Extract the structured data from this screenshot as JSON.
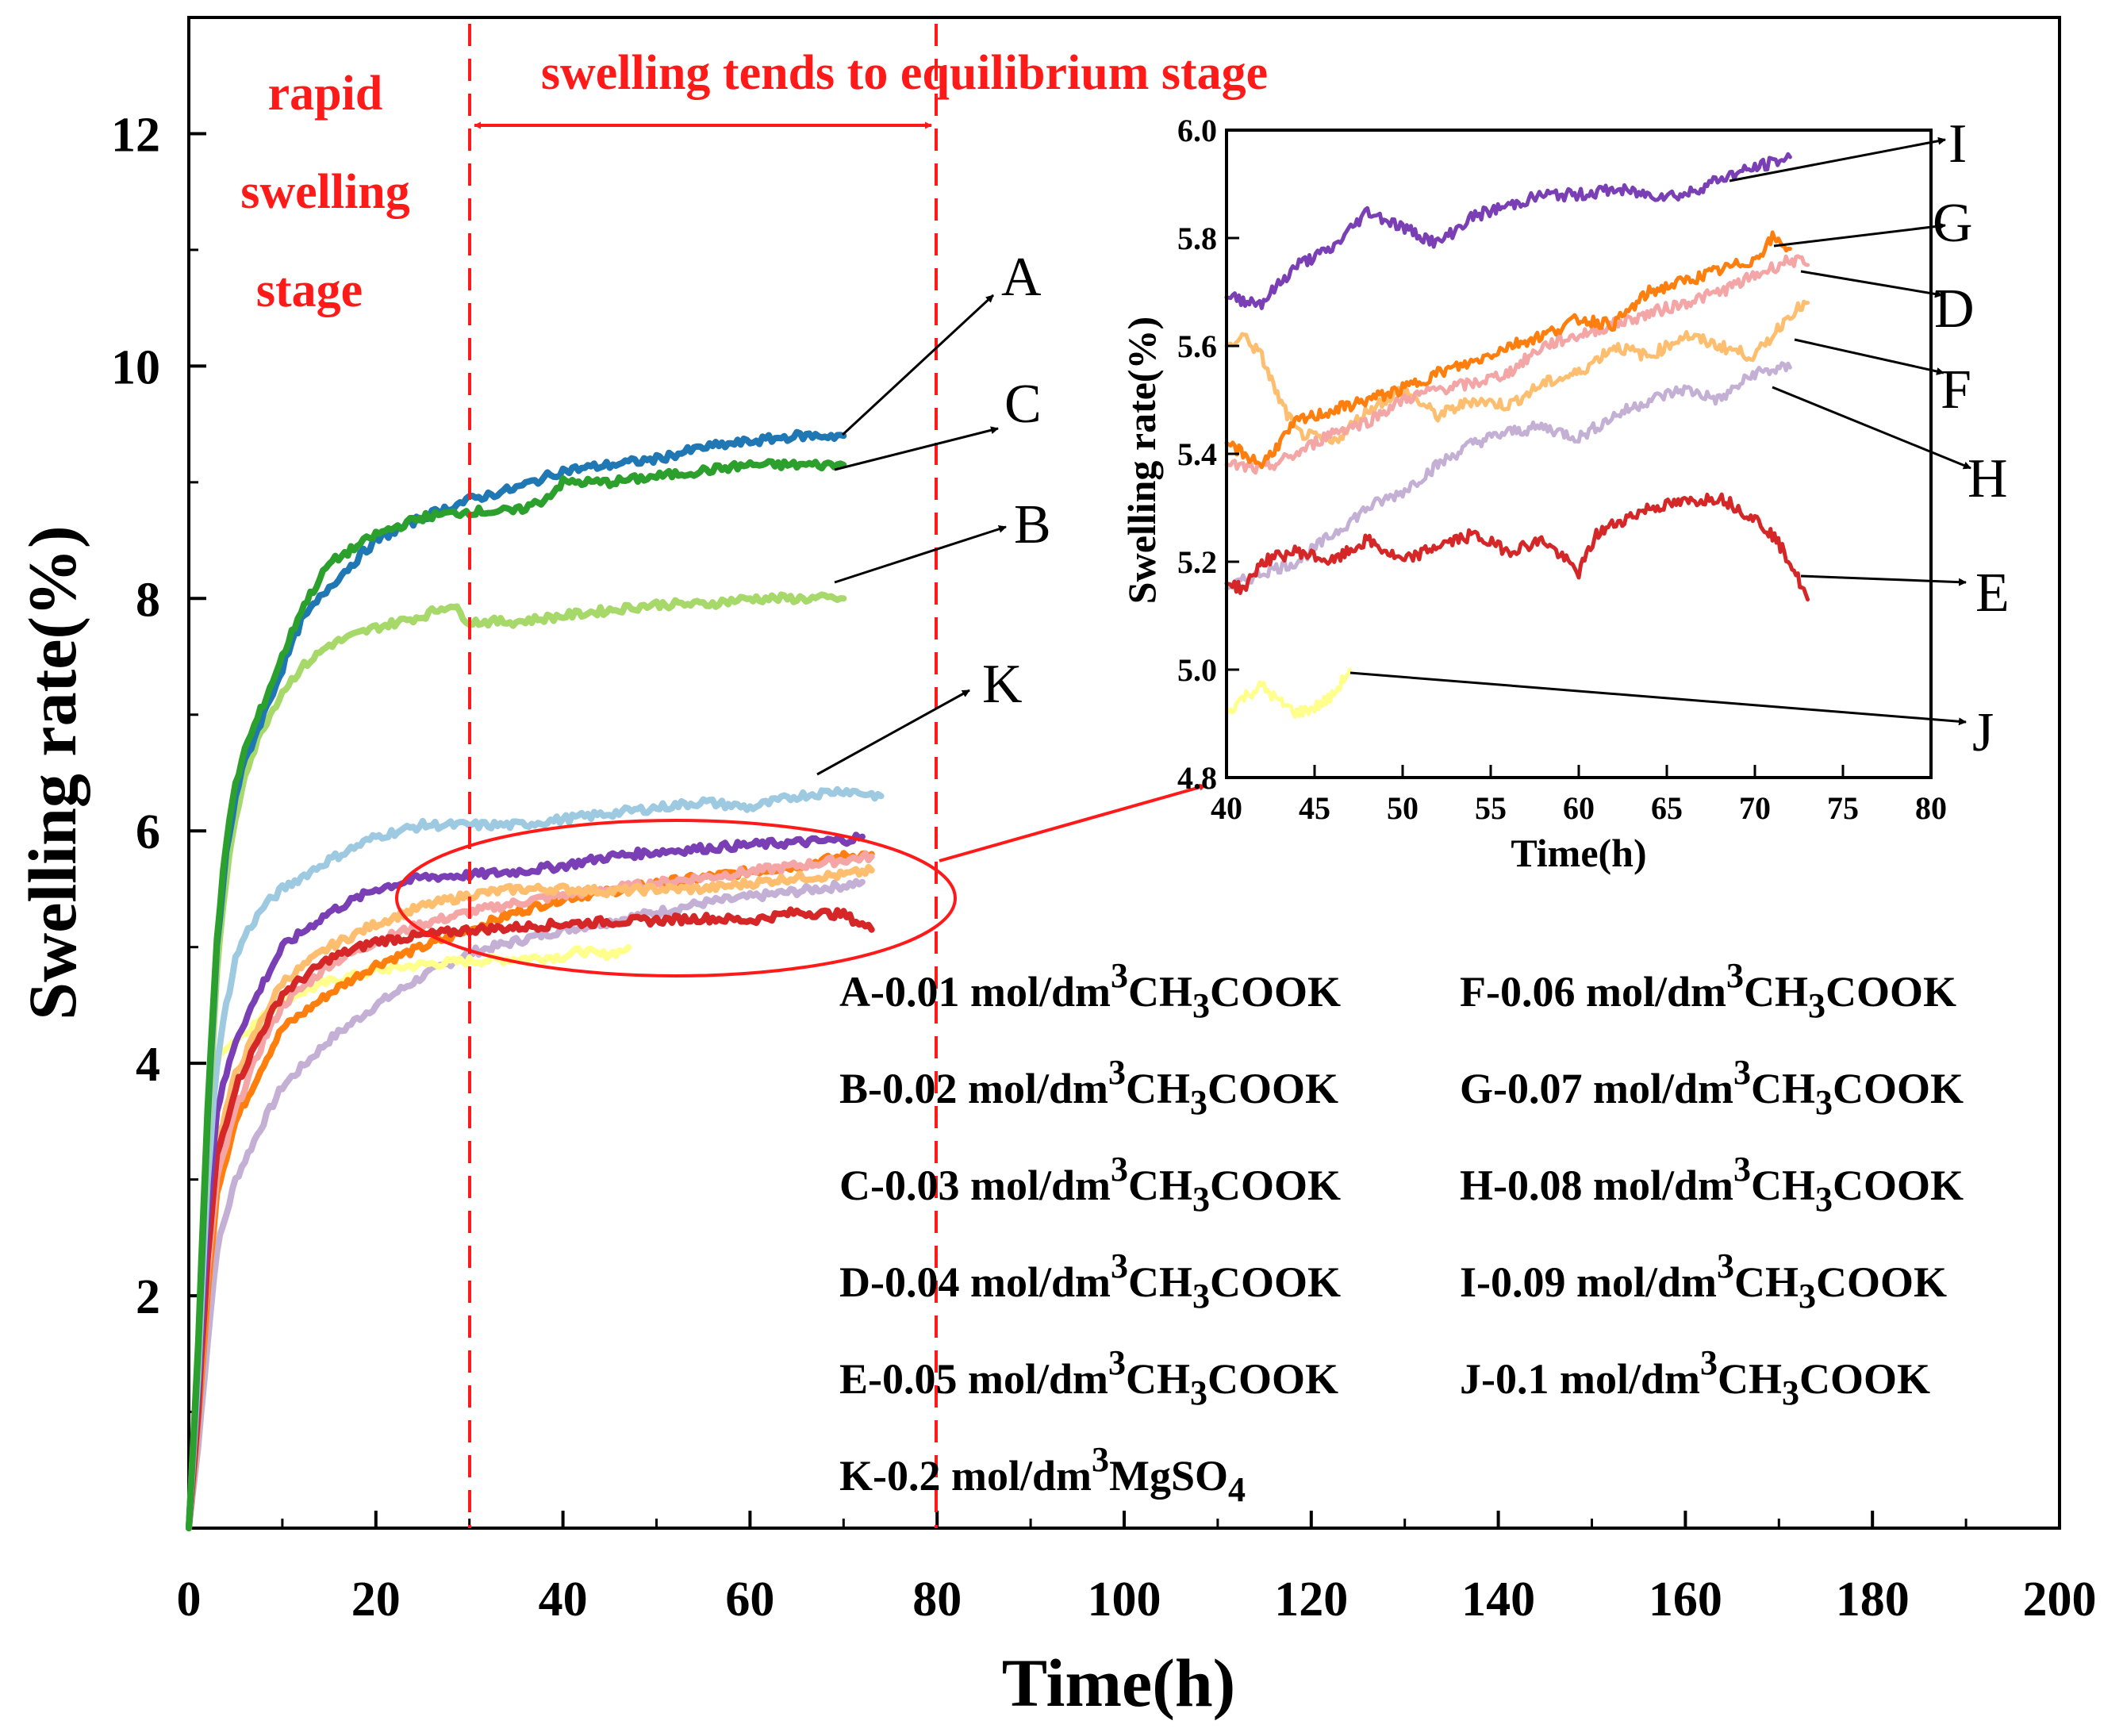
{
  "chart_data": [
    {
      "type": "line",
      "xlabel": "Time(h)",
      "ylabel": "Swelling rate(%)",
      "xlim": [
        0,
        200
      ],
      "ylim": [
        0,
        13
      ],
      "xticks": [
        "0",
        "20",
        "40",
        "60",
        "80",
        "100",
        "120",
        "140",
        "160",
        "180",
        "200"
      ],
      "yticks": [
        "2",
        "4",
        "6",
        "8",
        "10",
        "12"
      ],
      "grid": false,
      "series": [
        {
          "name": "A",
          "color": "#1f77b4",
          "x": [
            0,
            1,
            2,
            3,
            4,
            5,
            6,
            8,
            10,
            12,
            15,
            20,
            25,
            30,
            35,
            40,
            45,
            50,
            55,
            60,
            65,
            70
          ],
          "y": [
            0,
            1.5,
            3.5,
            5.0,
            5.8,
            6.3,
            6.6,
            7.0,
            7.4,
            7.8,
            8.1,
            8.5,
            8.7,
            8.85,
            8.95,
            9.1,
            9.15,
            9.2,
            9.3,
            9.35,
            9.4,
            9.4
          ]
        },
        {
          "name": "B",
          "color": "#a6d96a",
          "x": [
            0,
            1,
            2,
            3,
            4,
            5,
            6,
            8,
            10,
            12,
            15,
            20,
            25,
            28,
            30,
            35,
            40,
            45,
            50,
            55,
            60,
            65,
            70
          ],
          "y": [
            0,
            1.4,
            3.3,
            4.8,
            5.6,
            6.1,
            6.5,
            6.9,
            7.2,
            7.4,
            7.6,
            7.75,
            7.85,
            7.95,
            7.8,
            7.8,
            7.85,
            7.9,
            7.95,
            7.95,
            8.0,
            8.0,
            8.0
          ]
        },
        {
          "name": "C",
          "color": "#2ca02c",
          "x": [
            0,
            1,
            2,
            3,
            4,
            5,
            6,
            8,
            10,
            12,
            15,
            20,
            25,
            30,
            35,
            38,
            40,
            45,
            50,
            55,
            60,
            65,
            70
          ],
          "y": [
            0,
            1.6,
            3.6,
            5.1,
            5.9,
            6.4,
            6.7,
            7.1,
            7.5,
            7.9,
            8.3,
            8.55,
            8.7,
            8.75,
            8.75,
            8.85,
            9.0,
            9.0,
            9.05,
            9.1,
            9.15,
            9.15,
            9.15
          ]
        },
        {
          "name": "D",
          "color": "#f4a6a6",
          "x": [
            0,
            1,
            2,
            3,
            5,
            8,
            10,
            15,
            20,
            25,
            30,
            35,
            40,
            45,
            50,
            55,
            60,
            65,
            70,
            73
          ],
          "y": [
            0,
            1.0,
            2.2,
            3.0,
            3.6,
            4.2,
            4.5,
            4.85,
            5.05,
            5.2,
            5.3,
            5.38,
            5.45,
            5.5,
            5.55,
            5.6,
            5.65,
            5.7,
            5.75,
            5.78
          ]
        },
        {
          "name": "E",
          "color": "#d62728",
          "x": [
            0,
            1,
            2,
            3,
            5,
            8,
            10,
            15,
            20,
            25,
            30,
            35,
            40,
            45,
            50,
            55,
            60,
            65,
            70,
            73
          ],
          "y": [
            0,
            1.0,
            2.3,
            3.2,
            3.8,
            4.3,
            4.6,
            4.9,
            5.05,
            5.1,
            5.15,
            5.17,
            5.2,
            5.22,
            5.23,
            5.25,
            5.23,
            5.3,
            5.28,
            5.15
          ]
        },
        {
          "name": "F",
          "color": "#fdbf6f",
          "x": [
            0,
            1,
            2,
            3,
            5,
            8,
            10,
            15,
            20,
            25,
            30,
            35,
            40,
            45,
            50,
            55,
            60,
            65,
            70,
            73
          ],
          "y": [
            0,
            1.1,
            2.4,
            3.3,
            3.9,
            4.4,
            4.7,
            5.0,
            5.2,
            5.35,
            5.45,
            5.5,
            5.5,
            5.48,
            5.5,
            5.5,
            5.55,
            5.6,
            5.62,
            5.66
          ]
        },
        {
          "name": "G",
          "color": "#ff7f0e",
          "x": [
            0,
            1,
            2,
            3,
            5,
            8,
            10,
            15,
            20,
            25,
            30,
            35,
            40,
            45,
            50,
            55,
            60,
            65,
            70,
            73
          ],
          "y": [
            0,
            0.9,
            2.0,
            2.9,
            3.5,
            4.0,
            4.3,
            4.6,
            4.85,
            5.0,
            5.15,
            5.3,
            5.42,
            5.48,
            5.55,
            5.6,
            5.65,
            5.7,
            5.78,
            5.8
          ]
        },
        {
          "name": "H",
          "color": "#c5b0d5",
          "x": [
            0,
            1,
            2,
            3,
            5,
            8,
            10,
            15,
            20,
            25,
            30,
            35,
            40,
            45,
            50,
            55,
            60,
            65,
            70,
            72
          ],
          "y": [
            0,
            0.7,
            1.6,
            2.4,
            3.0,
            3.5,
            3.8,
            4.2,
            4.5,
            4.75,
            4.95,
            5.05,
            5.15,
            5.22,
            5.3,
            5.38,
            5.43,
            5.48,
            5.53,
            5.56
          ]
        },
        {
          "name": "I",
          "color": "#7b3fb5",
          "x": [
            0,
            1,
            2,
            3,
            5,
            8,
            10,
            15,
            20,
            25,
            30,
            35,
            40,
            45,
            50,
            55,
            60,
            65,
            70,
            72
          ],
          "y": [
            0,
            1.2,
            2.7,
            3.6,
            4.2,
            4.7,
            5.0,
            5.3,
            5.5,
            5.6,
            5.62,
            5.65,
            5.7,
            5.78,
            5.82,
            5.85,
            5.88,
            5.9,
            5.92,
            5.95
          ]
        },
        {
          "name": "J",
          "color": "#ffff8c",
          "x": [
            0,
            1,
            2,
            3,
            4,
            5,
            8,
            10,
            15,
            20,
            25,
            30,
            35,
            40,
            42,
            44,
            46,
            47
          ],
          "y": [
            0,
            1.5,
            3.2,
            4.0,
            4.15,
            4.2,
            4.4,
            4.55,
            4.7,
            4.8,
            4.85,
            4.88,
            4.9,
            4.92,
            4.97,
            4.93,
            4.96,
            5.0
          ]
        },
        {
          "name": "K",
          "color": "#9ecae1",
          "x": [
            0,
            1,
            2,
            3,
            4,
            5,
            6,
            8,
            10,
            15,
            20,
            25,
            30,
            35,
            40,
            45,
            50,
            55,
            60,
            65,
            70,
            74
          ],
          "y": [
            0,
            1.3,
            3.0,
            4.0,
            4.5,
            4.9,
            5.1,
            5.35,
            5.5,
            5.75,
            5.95,
            6.05,
            6.05,
            6.05,
            6.1,
            6.15,
            6.2,
            6.25,
            6.2,
            6.3,
            6.35,
            6.3
          ]
        }
      ]
    },
    {
      "type": "line",
      "xlabel": "Time(h)",
      "ylabel": "Swelling rate(%)",
      "xlim": [
        40,
        80
      ],
      "ylim": [
        4.8,
        6.0
      ],
      "xticks": [
        "40",
        "45",
        "50",
        "55",
        "60",
        "65",
        "70",
        "75",
        "80"
      ],
      "yticks": [
        "4.8",
        "5.0",
        "5.2",
        "5.4",
        "5.6",
        "5.8",
        "6.0"
      ],
      "grid": false,
      "series": [
        {
          "name": "I",
          "color": "#7b3fb5",
          "x": [
            40,
            42,
            44,
            46,
            48,
            50,
            52,
            54,
            56,
            58,
            60,
            62,
            64,
            66,
            68,
            70,
            72
          ],
          "y": [
            5.69,
            5.68,
            5.75,
            5.78,
            5.85,
            5.82,
            5.79,
            5.84,
            5.86,
            5.88,
            5.88,
            5.89,
            5.88,
            5.88,
            5.91,
            5.93,
            5.95
          ]
        },
        {
          "name": "G",
          "color": "#ff7f0e",
          "x": [
            40,
            42,
            44,
            46,
            48,
            50,
            52,
            54,
            56,
            58,
            60,
            62,
            64,
            66,
            68,
            70,
            71,
            72
          ],
          "y": [
            5.42,
            5.38,
            5.46,
            5.48,
            5.5,
            5.52,
            5.55,
            5.57,
            5.6,
            5.62,
            5.65,
            5.64,
            5.7,
            5.72,
            5.74,
            5.76,
            5.8,
            5.78
          ]
        },
        {
          "name": "D",
          "color": "#f4a6a6",
          "x": [
            40,
            42,
            44,
            46,
            48,
            50,
            52,
            54,
            56,
            58,
            60,
            62,
            64,
            66,
            68,
            70,
            72,
            73
          ],
          "y": [
            5.38,
            5.37,
            5.4,
            5.44,
            5.46,
            5.5,
            5.52,
            5.53,
            5.55,
            5.6,
            5.62,
            5.64,
            5.66,
            5.68,
            5.7,
            5.73,
            5.76,
            5.75
          ]
        },
        {
          "name": "F",
          "color": "#fdbf6f",
          "x": [
            40,
            41,
            42,
            43,
            44,
            46,
            48,
            50,
            52,
            54,
            56,
            58,
            60,
            62,
            64,
            66,
            68,
            70,
            72,
            73
          ],
          "y": [
            5.6,
            5.62,
            5.58,
            5.5,
            5.44,
            5.42,
            5.48,
            5.52,
            5.47,
            5.5,
            5.49,
            5.53,
            5.55,
            5.6,
            5.58,
            5.62,
            5.6,
            5.58,
            5.66,
            5.68
          ]
        },
        {
          "name": "H",
          "color": "#c5b0d5",
          "x": [
            40,
            42,
            44,
            46,
            48,
            50,
            52,
            54,
            56,
            58,
            60,
            62,
            64,
            66,
            68,
            70,
            72
          ],
          "y": [
            5.15,
            5.18,
            5.2,
            5.25,
            5.3,
            5.33,
            5.38,
            5.42,
            5.44,
            5.45,
            5.43,
            5.47,
            5.5,
            5.52,
            5.5,
            5.55,
            5.56
          ]
        },
        {
          "name": "E",
          "color": "#d62728",
          "x": [
            40,
            41,
            42,
            44,
            46,
            48,
            50,
            52,
            54,
            56,
            58,
            60,
            61,
            62,
            64,
            66,
            68,
            70,
            71,
            72,
            73
          ],
          "y": [
            5.16,
            5.15,
            5.2,
            5.22,
            5.2,
            5.24,
            5.2,
            5.23,
            5.25,
            5.22,
            5.24,
            5.18,
            5.25,
            5.27,
            5.3,
            5.31,
            5.32,
            5.28,
            5.25,
            5.2,
            5.13
          ]
        },
        {
          "name": "J",
          "color": "#ffff8c",
          "x": [
            40,
            41,
            42,
            43,
            44,
            45,
            46,
            47
          ],
          "y": [
            4.92,
            4.95,
            4.97,
            4.94,
            4.92,
            4.93,
            4.95,
            5.0
          ]
        }
      ]
    }
  ],
  "annotations": {
    "rapid_stage": [
      "rapid",
      "swelling",
      "stage"
    ],
    "equilibrium_stage": "swelling tends to equilibrium stage",
    "main_callouts": [
      "A",
      "C",
      "B",
      "K"
    ],
    "inset_callouts": [
      "I",
      "G",
      "D",
      "F",
      "H",
      "E",
      "J"
    ]
  },
  "legend": [
    {
      "prefix": "A-0.01 mol/dm",
      "sup": "3",
      "mid": "CH",
      "sub": "3",
      "suffix": "COOK"
    },
    {
      "prefix": "F-0.06 mol/dm",
      "sup": "3",
      "mid": "CH",
      "sub": "3",
      "suffix": "COOK"
    },
    {
      "prefix": "B-0.02 mol/dm",
      "sup": "3",
      "mid": "CH",
      "sub": "3",
      "suffix": "COOK"
    },
    {
      "prefix": "G-0.07 mol/dm",
      "sup": "3",
      "mid": "CH",
      "sub": "3",
      "suffix": "COOK"
    },
    {
      "prefix": "C-0.03 mol/dm",
      "sup": "3",
      "mid": "CH",
      "sub": "3",
      "suffix": "COOK"
    },
    {
      "prefix": "H-0.08 mol/dm",
      "sup": "3",
      "mid": "CH",
      "sub": "3",
      "suffix": "COOK"
    },
    {
      "prefix": "D-0.04 mol/dm",
      "sup": "3",
      "mid": "CH",
      "sub": "3",
      "suffix": "COOK"
    },
    {
      "prefix": "I-0.09 mol/dm",
      "sup": "3",
      "mid": "CH",
      "sub": "3",
      "suffix": "COOK"
    },
    {
      "prefix": "E-0.05 mol/dm",
      "sup": "3",
      "mid": "CH",
      "sub": "3",
      "suffix": "COOK"
    },
    {
      "prefix": "J-0.1 mol/dm",
      "sup": "3",
      "mid": "CH",
      "sub": "3",
      "suffix": "COOK"
    },
    {
      "prefix": "K-0.2 mol/dm",
      "sup": "3",
      "mid": "MgSO",
      "sub": "4",
      "suffix": ""
    }
  ],
  "colors": {
    "stage_lines": "#ff1a1a",
    "arrows": "#000000"
  }
}
